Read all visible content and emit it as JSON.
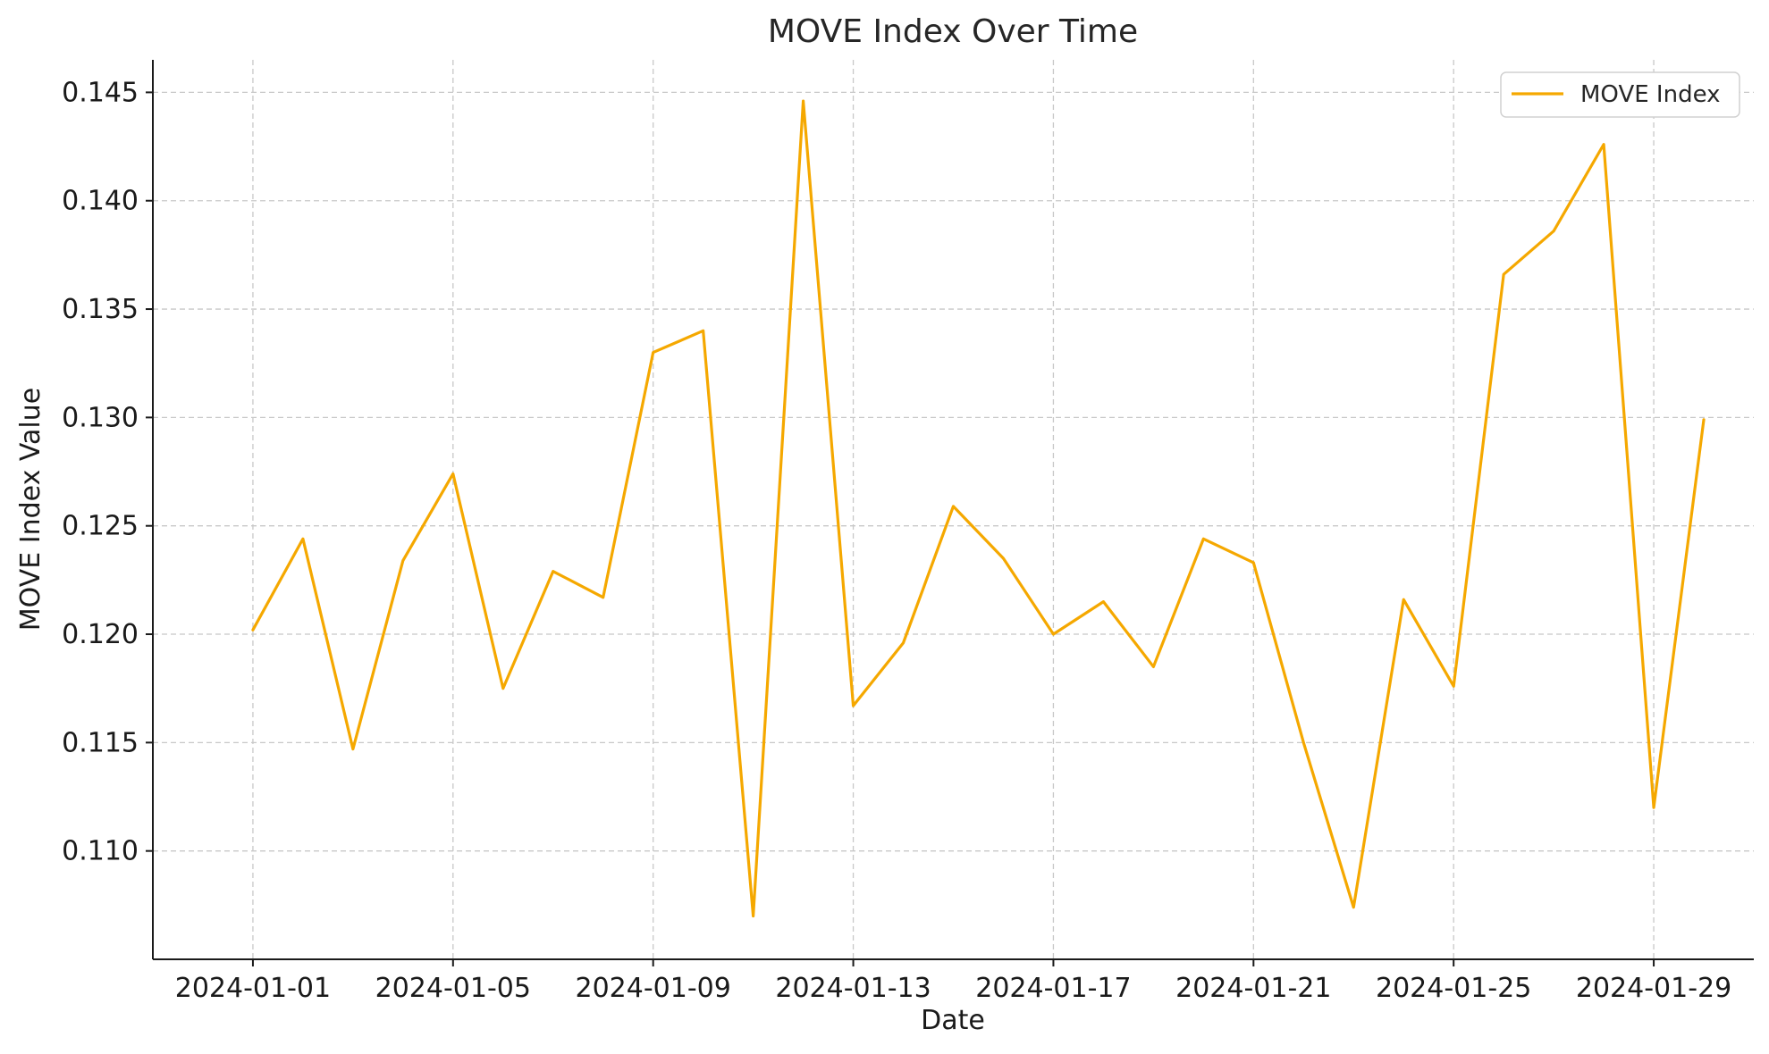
{
  "chart_data": {
    "type": "line",
    "title": "MOVE Index Over Time",
    "xlabel": "Date",
    "ylabel": "MOVE Index Value",
    "x": [
      "2024-01-01",
      "2024-01-02",
      "2024-01-03",
      "2024-01-04",
      "2024-01-05",
      "2024-01-06",
      "2024-01-07",
      "2024-01-08",
      "2024-01-09",
      "2024-01-10",
      "2024-01-11",
      "2024-01-12",
      "2024-01-13",
      "2024-01-14",
      "2024-01-15",
      "2024-01-16",
      "2024-01-17",
      "2024-01-18",
      "2024-01-19",
      "2024-01-20",
      "2024-01-21",
      "2024-01-22",
      "2024-01-23",
      "2024-01-24",
      "2024-01-25",
      "2024-01-26",
      "2024-01-27",
      "2024-01-28",
      "2024-01-29",
      "2024-01-30"
    ],
    "series": [
      {
        "name": "MOVE Index",
        "color": "#f5a800",
        "values": [
          0.1202,
          0.1244,
          0.1147,
          0.1234,
          0.1274,
          0.1175,
          0.1229,
          0.1217,
          0.133,
          0.134,
          0.107,
          0.1446,
          0.1167,
          0.1196,
          0.1259,
          0.1235,
          0.12,
          0.1215,
          0.1185,
          0.1244,
          0.1233,
          0.115,
          0.1074,
          0.1216,
          0.1176,
          0.1366,
          0.1386,
          0.1426,
          0.112,
          0.1299
        ]
      }
    ],
    "x_ticks": [
      "2024-01-01",
      "2024-01-05",
      "2024-01-09",
      "2024-01-13",
      "2024-01-17",
      "2024-01-21",
      "2024-01-25",
      "2024-01-29"
    ],
    "y_ticks": [
      "0.110",
      "0.115",
      "0.120",
      "0.125",
      "0.130",
      "0.135",
      "0.140",
      "0.145"
    ],
    "xlim": [
      "2023-12-30",
      "2024-01-31"
    ],
    "ylim": [
      0.105,
      0.1465
    ],
    "grid": true,
    "legend": "top-right"
  }
}
